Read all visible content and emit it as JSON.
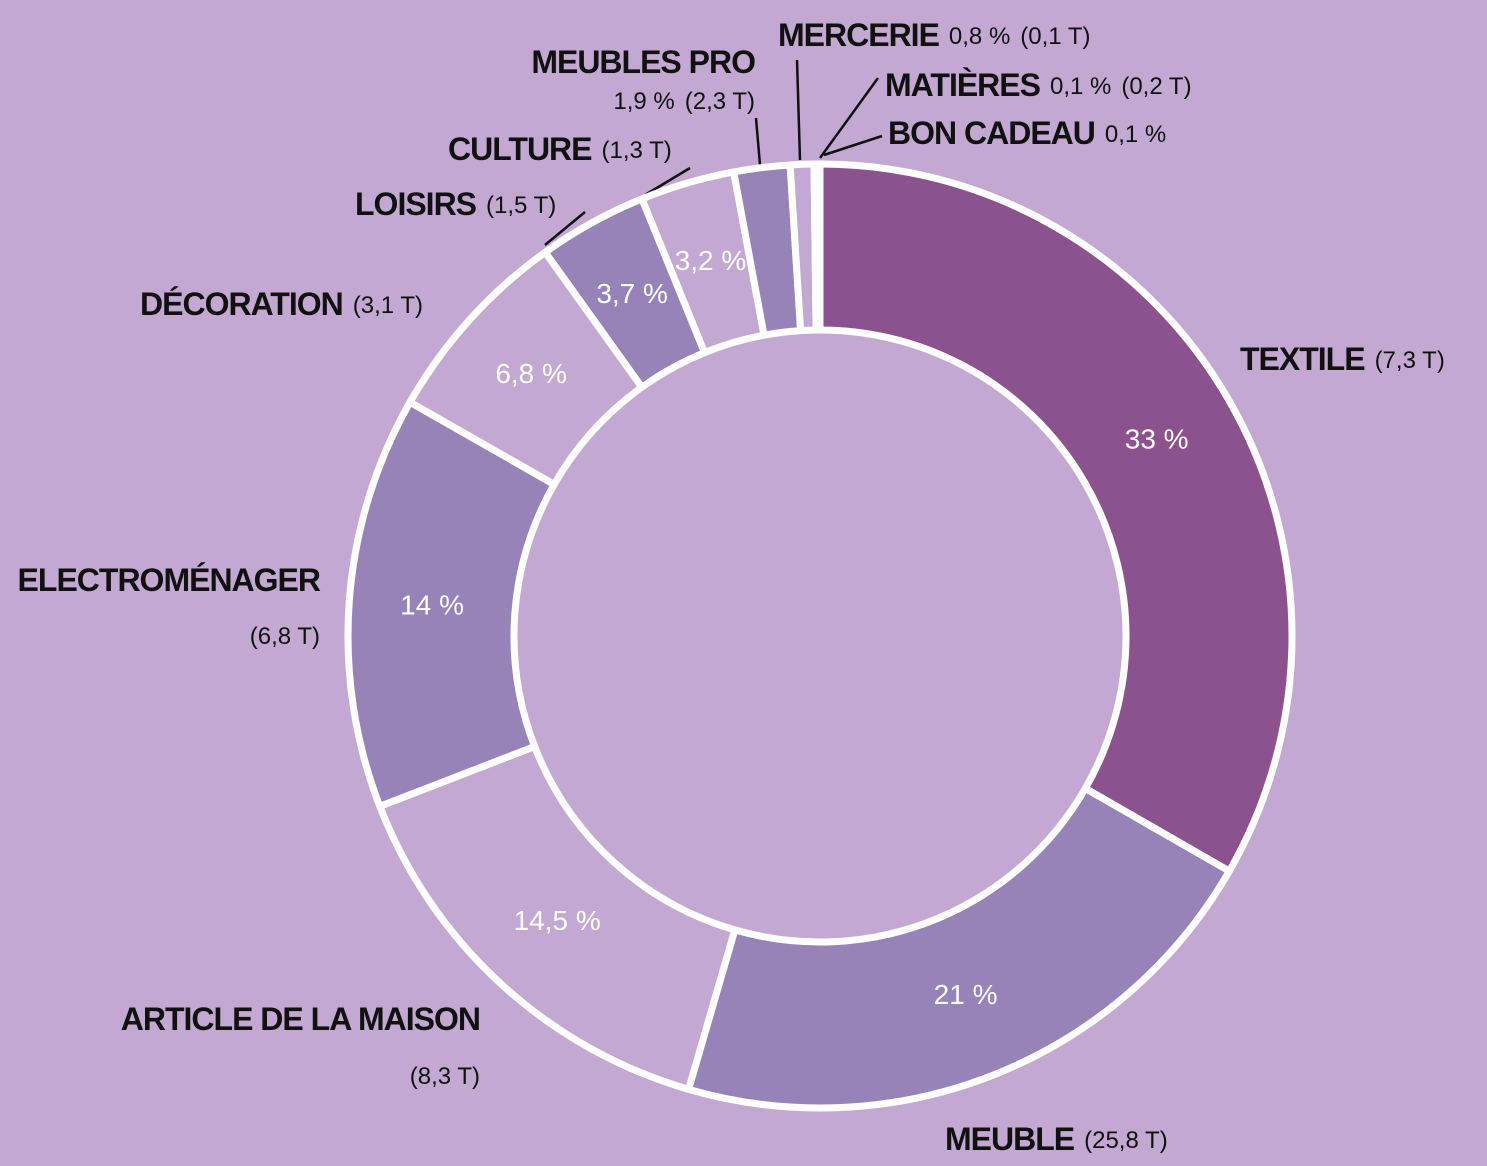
{
  "chart_data": {
    "type": "donut",
    "categories": [
      "TEXTILE",
      "MEUBLE",
      "ARTICLE DE LA MAISON",
      "ELECTROMÉNAGER",
      "DÉCORATION",
      "LOISIRS",
      "CULTURE",
      "MEUBLES PRO",
      "MERCERIE",
      "MATIÈRES",
      "BON CADEAU"
    ],
    "values": [
      33,
      21,
      14.5,
      14,
      6.8,
      3.7,
      3.2,
      1.9,
      0.8,
      0.1,
      0.1
    ],
    "value_labels": [
      "33 %",
      "21 %",
      "14,5 %",
      "14 %",
      "6,8 %",
      "3,7 %",
      "3,2 %",
      "1,9 %",
      "0,8 %",
      "0,1 %",
      "0,1 %"
    ],
    "tonnage_labels": [
      "(7,3 T)",
      "(25,8 T)",
      "(8,3 T)",
      "(6,8 T)",
      "(3,1 T)",
      "(1,5 T)",
      "(1,3 T)",
      "(2,3 T)",
      "(0,1 T)",
      "(0,2 T)",
      null
    ],
    "colors": [
      "#8b528e",
      "#9683b7",
      "#c3a9d2",
      "#9683b7",
      "#c3a9d2",
      "#9683b7",
      "#c3a9d2",
      "#9683b7",
      "#c3a9d2",
      "#c3a9d2",
      "#9683b7"
    ]
  }
}
